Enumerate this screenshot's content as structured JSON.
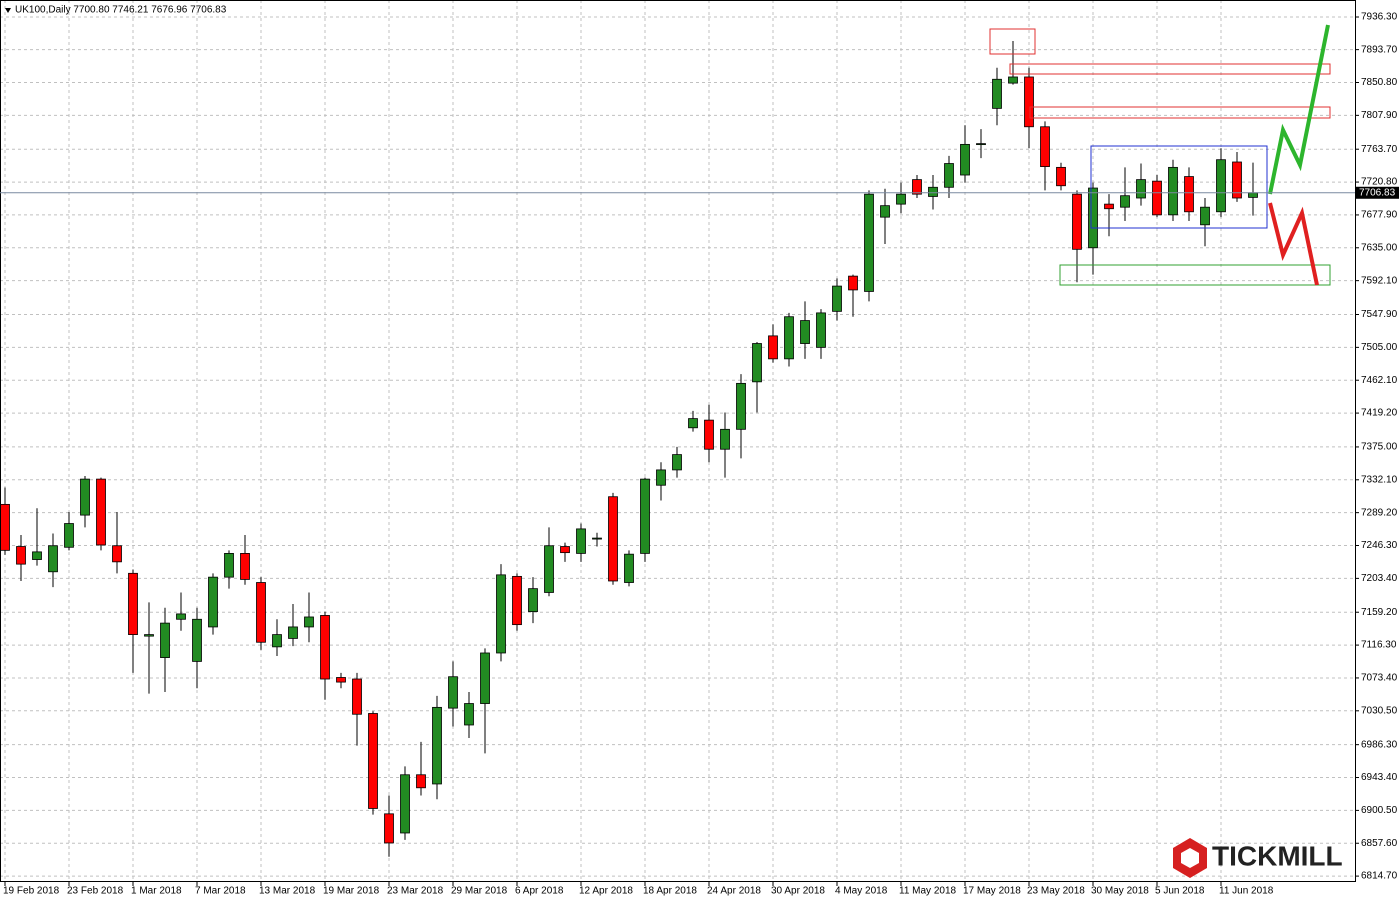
{
  "chart_data": {
    "type": "candlestick",
    "header": "UK100,Daily  7700.80 7746.21 7676.96 7706.83",
    "categories": [
      "19 Feb 2018",
      null,
      null,
      null,
      "23 Feb 2018",
      null,
      null,
      null,
      "1 Mar 2018",
      null,
      null,
      null,
      "7 Mar 2018",
      null,
      null,
      null,
      "13 Mar 2018",
      null,
      null,
      null,
      "19 Mar 2018",
      null,
      null,
      null,
      "23 Mar 2018",
      null,
      null,
      null,
      "29 Mar 2018",
      null,
      null,
      null,
      "6 Apr 2018",
      null,
      null,
      null,
      "12 Apr 2018",
      null,
      null,
      null,
      "18 Apr 2018",
      null,
      null,
      null,
      "24 Apr 2018",
      null,
      null,
      null,
      "30 Apr 2018",
      null,
      null,
      null,
      "4 May 2018",
      null,
      null,
      null,
      "11 May 2018",
      null,
      null,
      null,
      "17 May 2018",
      null,
      null,
      null,
      "23 May 2018",
      null,
      null,
      null,
      "30 May 2018",
      null,
      null,
      null,
      "5 Jun 2018",
      null,
      null,
      null,
      "11 Jun 2018",
      null,
      null
    ],
    "open": [
      7300,
      7245,
      7228,
      7212,
      7244,
      7286,
      7333,
      7246,
      7210,
      7128,
      7100,
      7150,
      7095,
      7140,
      7205,
      7236,
      7198,
      7114,
      7125,
      7140,
      7155,
      7074,
      7072,
      7027,
      6896,
      6871,
      6947,
      6935,
      7034,
      7012,
      7040,
      7106,
      7206,
      7160,
      7185,
      7245,
      7236,
      7255,
      7310,
      7198,
      7236,
      7325,
      7345,
      7400,
      7410,
      7372,
      7398,
      7460,
      7520,
      7490,
      7510,
      7505,
      7552,
      7598,
      7578,
      7675,
      7692,
      7724,
      7702,
      7714,
      7730,
      7770,
      7817,
      7850,
      7858,
      7793,
      7740,
      7705,
      7635,
      7692,
      7688,
      7700,
      7722,
      7678,
      7728,
      7665,
      7682,
      7747,
      7700.8
    ],
    "high": [
      7322,
      7260,
      7295,
      7262,
      7290,
      7337,
      7335,
      7290,
      7215,
      7172,
      7165,
      7185,
      7165,
      7210,
      7240,
      7260,
      7205,
      7150,
      7170,
      7185,
      7160,
      7080,
      7080,
      7030,
      6920,
      6958,
      6990,
      7050,
      7095,
      7055,
      7112,
      7222,
      7210,
      7205,
      7270,
      7250,
      7275,
      7263,
      7315,
      7240,
      7335,
      7355,
      7375,
      7422,
      7430,
      7420,
      7470,
      7512,
      7535,
      7550,
      7565,
      7555,
      7595,
      7600,
      7710,
      7712,
      7720,
      7730,
      7730,
      7755,
      7795,
      7790,
      7870,
      7905,
      7870,
      7800,
      7746,
      7710,
      7720,
      7705,
      7740,
      7745,
      7730,
      7750,
      7740,
      7700,
      7765,
      7760,
      7746.21
    ],
    "low": [
      7234,
      7200,
      7220,
      7192,
      7240,
      7270,
      7240,
      7210,
      7080,
      7053,
      7055,
      7135,
      7060,
      7130,
      7190,
      7195,
      7110,
      7102,
      7115,
      7120,
      7045,
      7060,
      6985,
      6895,
      6840,
      6862,
      6920,
      6915,
      7010,
      6995,
      6975,
      7095,
      7135,
      7145,
      7180,
      7225,
      7225,
      7245,
      7195,
      7193,
      7225,
      7305,
      7335,
      7395,
      7355,
      7335,
      7360,
      7420,
      7485,
      7480,
      7490,
      7490,
      7540,
      7545,
      7565,
      7640,
      7680,
      7700,
      7685,
      7700,
      7720,
      7752,
      7795,
      7848,
      7765,
      7710,
      7710,
      7590,
      7600,
      7650,
      7670,
      7690,
      7675,
      7670,
      7670,
      7637,
      7675,
      7695,
      7676.96
    ],
    "close": [
      7240,
      7222,
      7238,
      7246,
      7275,
      7333,
      7247,
      7225,
      7130,
      7130,
      7145,
      7157,
      7150,
      7205,
      7236,
      7202,
      7120,
      7130,
      7140,
      7153,
      7072,
      7068,
      7026,
      6903,
      6858,
      6947,
      6930,
      7035,
      7075,
      7040,
      7106,
      7208,
      7143,
      7190,
      7246,
      7237,
      7268,
      7256,
      7200,
      7235,
      7333,
      7345,
      7365,
      7412,
      7372,
      7398,
      7458,
      7510,
      7490,
      7545,
      7540,
      7550,
      7585,
      7580,
      7705,
      7690,
      7705,
      7705,
      7714,
      7745,
      7770,
      7771,
      7855,
      7858,
      7793,
      7741,
      7716,
      7633,
      7713,
      7686,
      7703,
      7724,
      7678,
      7740,
      7682,
      7688,
      7750,
      7700,
      7706.83
    ],
    "up_color": "#228b22",
    "down_color": "#ff0000",
    "current_price": 7706.83,
    "ylim": [
      6807,
      7958.5
    ],
    "yticks": [
      {
        "value": 7936.3,
        "label": "7936.30"
      },
      {
        "value": 7893.7,
        "label": "7893.70"
      },
      {
        "value": 7850.8,
        "label": "7850.80"
      },
      {
        "value": 7807.9,
        "label": "7807.90"
      },
      {
        "value": 7763.7,
        "label": "7763.70"
      },
      {
        "value": 7720.8,
        "label": "7720.80"
      },
      {
        "value": 7677.9,
        "label": "7677.90"
      },
      {
        "value": 7635,
        "label": "7635.00"
      },
      {
        "value": 7592.1,
        "label": "7592.10"
      },
      {
        "value": 7547.9,
        "label": "7547.90"
      },
      {
        "value": 7505,
        "label": "7505.00"
      },
      {
        "value": 7462.1,
        "label": "7462.10"
      },
      {
        "value": 7419.2,
        "label": "7419.20"
      },
      {
        "value": 7375,
        "label": "7375.00"
      },
      {
        "value": 7332.1,
        "label": "7332.10"
      },
      {
        "value": 7289.2,
        "label": "7289.20"
      },
      {
        "value": 7246.3,
        "label": "7246.30"
      },
      {
        "value": 7203.4,
        "label": "7203.40"
      },
      {
        "value": 7159.2,
        "label": "7159.20"
      },
      {
        "value": 7116.3,
        "label": "7116.30"
      },
      {
        "value": 7073.4,
        "label": "7073.40"
      },
      {
        "value": 7030.5,
        "label": "7030.50"
      },
      {
        "value": 6986.3,
        "label": "6986.30"
      },
      {
        "value": 6943.4,
        "label": "6943.40"
      },
      {
        "value": 6900.5,
        "label": "6900.50"
      },
      {
        "value": 6857.6,
        "label": "6857.60"
      },
      {
        "value": 6814.7,
        "label": "6814.70"
      }
    ],
    "grid": true,
    "brand": "TICKMILL"
  }
}
